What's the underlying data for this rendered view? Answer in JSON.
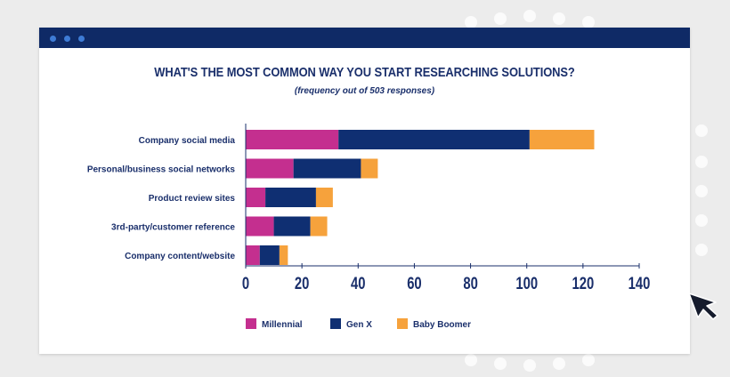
{
  "window": {
    "titlebar_color": "#0f2a66",
    "buttons": [
      "dot-1",
      "dot-2",
      "dot-3"
    ]
  },
  "chart_data": {
    "type": "bar",
    "orientation": "horizontal",
    "stacked": true,
    "title": "WHAT'S THE MOST COMMON WAY YOU START RESEARCHING SOLUTIONS?",
    "subtitle": "(frequency out of 503 responses)",
    "categories": [
      "Company social media",
      "Personal/business social networks",
      "Product review sites",
      "3rd-party/customer reference",
      "Company content/website"
    ],
    "series": [
      {
        "name": "Millennial",
        "color": "#c42f8f",
        "values": [
          33,
          17,
          7,
          10,
          5
        ]
      },
      {
        "name": "Gen X",
        "color": "#0f2f72",
        "values": [
          68,
          24,
          18,
          13,
          7
        ]
      },
      {
        "name": "Baby Boomer",
        "color": "#f6a23c",
        "values": [
          23,
          6,
          6,
          6,
          3
        ]
      }
    ],
    "xlim": [
      0,
      140
    ],
    "xticks": [
      "0",
      "20",
      "40",
      "60",
      "80",
      "100",
      "120",
      "140"
    ],
    "grid": false,
    "legend_position": "bottom"
  },
  "cursor": {
    "icon": "arrow-cursor-icon"
  }
}
